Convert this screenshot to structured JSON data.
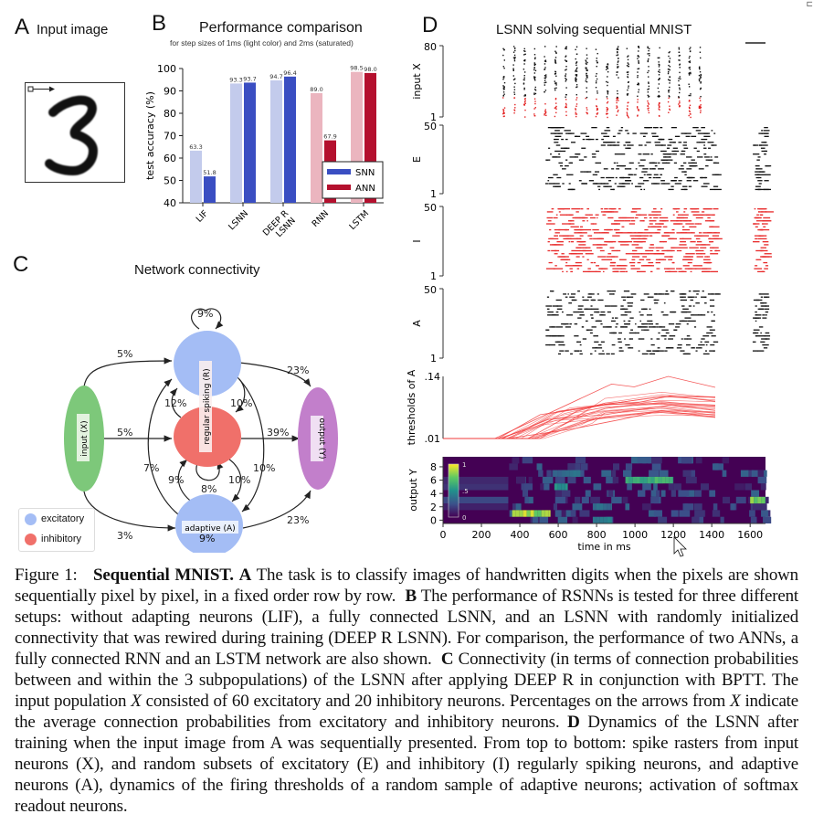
{
  "figure": {
    "panelA": {
      "letter": "A",
      "title": "Input image",
      "digit": "3"
    },
    "panelB": {
      "letter": "B",
      "title": "Performance comparison",
      "subtitle": "for step sizes of 1ms (light color) and 2ms (saturated)"
    },
    "panelC": {
      "letter": "C",
      "title": "Network connectivity",
      "nodes": {
        "input": "input (X)",
        "regular": "regular spiking (R)",
        "adaptive": "adaptive (A)",
        "output": "output (Y)"
      },
      "edges": {
        "x_to_r": "5%",
        "x_to_i": "5%",
        "x_to_a": "3%",
        "r_self": "9%",
        "r_to_y": "23%",
        "i_to_r": "12%",
        "r_to_i": "10%",
        "i_to_y": "39%",
        "a_to_r": "7%",
        "r_to_a": "10%",
        "a_to_i": "9%",
        "i_self": "8%",
        "i_to_a": "10%",
        "a_to_y": "23%",
        "a_self": "9%"
      },
      "legend": [
        {
          "label": "excitatory",
          "color": "#a4bdf5"
        },
        {
          "label": "inhibitory",
          "color": "#f0706a"
        }
      ]
    },
    "panelD": {
      "letter": "D",
      "title": "LSNN solving sequential MNIST",
      "rows": [
        {
          "label": "input X",
          "top": "80",
          "bottom": "1"
        },
        {
          "label": "E",
          "top": "50",
          "bottom": "1"
        },
        {
          "label": "I",
          "top": "50",
          "bottom": "1"
        },
        {
          "label": "A",
          "top": "50",
          "bottom": "1"
        }
      ],
      "thresholds": {
        "label": "thresholds of A",
        "top": ".14",
        "bottom": ".01"
      },
      "output": {
        "label": "output Y",
        "yticks": [
          "0",
          "2",
          "4",
          "6",
          "8"
        ],
        "colorbar": [
          "1",
          ".5",
          "0"
        ],
        "xticks": [
          "0",
          "200",
          "400",
          "600",
          "800",
          "1000",
          "1200",
          "1400",
          "1600"
        ],
        "xlabel": "time in ms"
      }
    },
    "caption": {
      "prefix": "Figure 1:",
      "bold_title": "Sequential MNIST.",
      "A_label": "A",
      "A_text": "The task is to classify images of handwritten digits when the pixels are shown sequentially pixel by pixel, in a fixed order row by row.",
      "B_label": "B",
      "B_text": "The performance of RSNNs is tested for three different setups: without adapting neurons (LIF), a fully connected LSNN, and an LSNN with randomly initialized connectivity that was rewired during training (DEEP R LSNN). For comparison, the performance of two ANNs, a fully connected RNN and an LSTM network are also shown.",
      "C_label": "C",
      "C_text_1": "Connectivity (in terms of connection probabilities between and within the 3 subpopulations) of the LSNN after applying DEEP R in conjunction with BPTT. The input population",
      "C_var_1": "X",
      "C_text_2": "consisted of 60 excitatory and 20 inhibitory neurons. Percentages on the arrows from",
      "C_var_2": "X",
      "C_text_3": "indicate the average connection probabilities from excitatory and inhibitory neurons.",
      "D_label": "D",
      "D_text": "Dynamics of the LSNN after training when the input image from A was sequentially presented. From top to bottom: spike rasters from input neurons (X), and random subsets of excitatory (E) and inhibitory (I) regularly spiking neurons, and adaptive neurons (A), dynamics of the firing thresholds of a random sample of adaptive neurons; activation of softmax readout neurons."
    }
  },
  "chart_data": [
    {
      "type": "bar",
      "title": "Performance comparison",
      "subtitle": "for step sizes of 1ms (light color) and 2ms (saturated)",
      "categories": [
        "LIF",
        "LSNN",
        "DEEP R LSNN",
        "RNN",
        "LSTM"
      ],
      "category_tick_labels": [
        "LIF",
        "LSNN",
        "DEEP R\nLSNN",
        "RNN",
        "LSTM"
      ],
      "series": [
        {
          "name": "1ms (light)",
          "values": [
            63.3,
            93.3,
            94.7,
            89.0,
            98.5
          ]
        },
        {
          "name": "2ms (saturated)",
          "values": [
            51.8,
            93.7,
            96.4,
            67.9,
            98.0
          ]
        }
      ],
      "bar_family": [
        "SNN",
        "SNN",
        "SNN",
        "ANN",
        "ANN"
      ],
      "colors": {
        "SNN_light": "#c3cbec",
        "SNN_sat": "#3a4ec2",
        "ANN_light": "#ebb5bf",
        "ANN_sat": "#b4102e"
      },
      "legend": [
        {
          "label": "SNN",
          "color": "#3a4ec2"
        },
        {
          "label": "ANN",
          "color": "#b4102e"
        }
      ],
      "legend_position": "bottom-right",
      "xlabel": "",
      "ylabel": "test accuracy (%)",
      "ylim": [
        40,
        100
      ],
      "yticks": [
        40,
        50,
        60,
        70,
        80,
        90,
        100
      ],
      "grid": false
    },
    {
      "type": "line",
      "title": "thresholds of A",
      "xlim": [
        0,
        1680
      ],
      "ylim": [
        0.01,
        0.14
      ],
      "description": "Firing thresholds of adaptive neurons stay at 0.01 until ~300 ms, then rise; one trace peaks near 0.14 at ~1400 ms, most settle around 0.06-0.09.",
      "series": [
        {
          "name": "max trace",
          "x": [
            0,
            320,
            1040,
            1180,
            1390,
            1680
          ],
          "y": [
            0.01,
            0.01,
            0.124,
            0.118,
            0.14,
            0.117
          ]
        },
        {
          "name": "upper trace",
          "x": [
            0,
            340,
            600,
            1000,
            1200,
            1400,
            1680
          ],
          "y": [
            0.01,
            0.01,
            0.06,
            0.08,
            0.085,
            0.099,
            0.088
          ]
        },
        {
          "name": "typical trace",
          "x": [
            0,
            360,
            650,
            1000,
            1200,
            1400,
            1680
          ],
          "y": [
            0.01,
            0.01,
            0.05,
            0.06,
            0.07,
            0.08,
            0.075
          ]
        },
        {
          "name": "lower trace",
          "x": [
            0,
            400,
            800,
            1100,
            1300,
            1680
          ],
          "y": [
            0.01,
            0.01,
            0.03,
            0.05,
            0.065,
            0.06
          ]
        }
      ],
      "color": "#f23b3b"
    },
    {
      "type": "heatmap",
      "title": "output Y",
      "xlabel": "time in ms",
      "ylabel": "output Y",
      "xlim": [
        0,
        1680
      ],
      "ylim": [
        0,
        9
      ],
      "xticks": [
        0,
        200,
        400,
        600,
        800,
        1000,
        1200,
        1400,
        1600
      ],
      "yticks": [
        0,
        2,
        4,
        6,
        8
      ],
      "colorbar": {
        "min": 0,
        "max": 1,
        "ticks": [
          0,
          0.5,
          1
        ],
        "colormap": "viridis"
      },
      "highlights": [
        {
          "class": 1,
          "t_start": 360,
          "t_end": 560,
          "value": 0.95
        },
        {
          "class": 6,
          "t_start": 950,
          "t_end": 1200,
          "value": 0.7
        },
        {
          "class": 3,
          "t_start": 1600,
          "t_end": 1680,
          "value": 0.9
        },
        {
          "class": 5,
          "t_start": 580,
          "t_end": 650,
          "value": 0.55
        },
        {
          "class": 0,
          "t_start": 780,
          "t_end": 880,
          "value": 0.45
        },
        {
          "class": 7,
          "t_start": 600,
          "t_end": 720,
          "value": 0.4
        },
        {
          "class": 2,
          "t_start": 780,
          "t_end": 880,
          "value": 0.4
        }
      ]
    }
  ]
}
